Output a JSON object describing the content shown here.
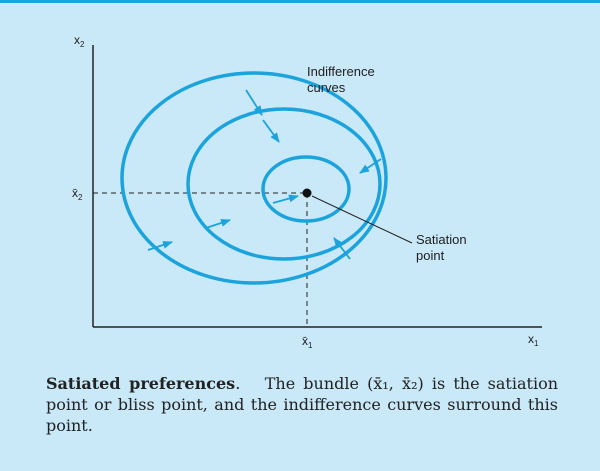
{
  "diagram": {
    "y_axis_label": "x",
    "y_axis_sub": "2",
    "x_axis_label": "x",
    "x_axis_sub": "1",
    "xbar_label": "x̄",
    "xbar_sub": "1",
    "ybar_label": "x̄",
    "ybar_sub": "2",
    "curves_label_line1": "Indifference",
    "curves_label_line2": "curves",
    "satiation_label_line1": "Satiation",
    "satiation_label_line2": "point",
    "curve_color": "#1aa3dc",
    "point_color": "#111111"
  },
  "caption": {
    "title": "Satiated preferences",
    "title_suffix": ".",
    "text": "The bundle (x̄₁, x̄₂) is the satiation point or bliss point, and the indifference curves surround this point."
  }
}
